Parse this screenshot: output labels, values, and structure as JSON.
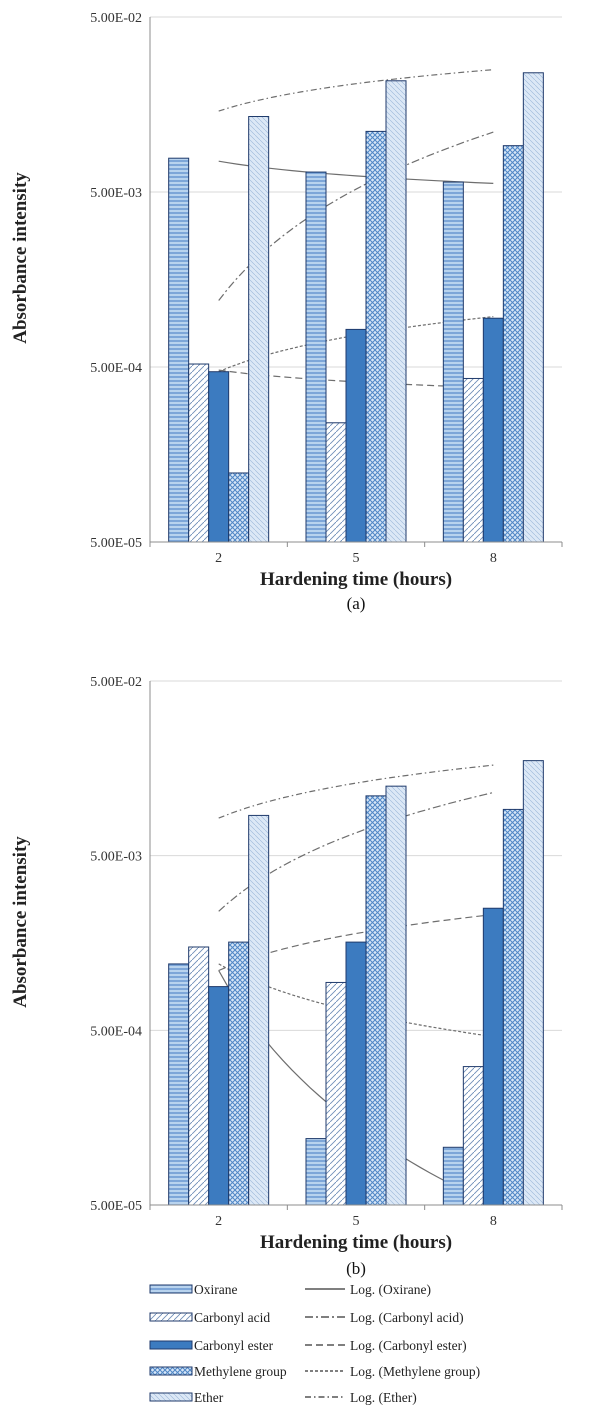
{
  "colors": {
    "oxirane": "#9dc3e6",
    "carbonyl_acid": "#ffffff",
    "carbonyl_ester": "#3c7bc0",
    "methylene_group": "#a9c8ea",
    "ether": "#dce8f6",
    "outline": "#1f3a6b",
    "trend": "#6e6e6e"
  },
  "chart_data": [
    {
      "type": "bar",
      "panel_label": "(a)",
      "xlabel": "Hardening time (hours)",
      "ylabel": "Absorbance intensity",
      "yscale": "log",
      "ylim": [
        5e-05,
        0.05
      ],
      "yticks": [
        "5.00E-05",
        "5.00E-04",
        "5.00E-03",
        "5.00E-02"
      ],
      "categories": [
        "2",
        "5",
        "8"
      ],
      "grid": true,
      "series": [
        {
          "name": "Oxirane",
          "values": [
            0.0078,
            0.0065,
            0.0057
          ]
        },
        {
          "name": "Carbonyl acid",
          "values": [
            0.00052,
            0.00024,
            0.00043
          ]
        },
        {
          "name": "Carbonyl ester",
          "values": [
            0.00047,
            0.00082,
            0.00095
          ]
        },
        {
          "name": "Methylene group",
          "values": [
            0.000124,
            0.0111,
            0.0092
          ]
        },
        {
          "name": "Ether",
          "values": [
            0.0135,
            0.0216,
            0.024
          ]
        }
      ],
      "trendlines": [
        {
          "name": "Log. (Oxirane)",
          "values": [
            0.0075,
            0.0063,
            0.0056
          ]
        },
        {
          "name": "Log. (Carbonyl acid)",
          "values": [
            0.0012,
            0.0075,
            0.011
          ]
        },
        {
          "name": "Log. (Carbonyl ester)",
          "values": [
            0.00048,
            0.00041,
            0.00038
          ]
        },
        {
          "name": "Log. (Methylene group)",
          "values": [
            0.00047,
            0.00082,
            0.00097
          ]
        },
        {
          "name": "Log. (Ether)",
          "values": [
            0.0145,
            0.021,
            0.025
          ]
        }
      ]
    },
    {
      "type": "bar",
      "panel_label": "(b)",
      "xlabel": "Hardening time (hours)",
      "ylabel": "Absorbance intensity",
      "yscale": "log",
      "ylim": [
        5e-05,
        0.05
      ],
      "yticks": [
        "5.00E-05",
        "5.00E-04",
        "5.00E-03",
        "5.00E-02"
      ],
      "categories": [
        "2",
        "5",
        "8"
      ],
      "grid": true,
      "series": [
        {
          "name": "Oxirane",
          "values": [
            0.0012,
            0.00012,
            0.000107
          ]
        },
        {
          "name": "Carbonyl acid",
          "values": [
            0.0015,
            0.00094,
            0.00031
          ]
        },
        {
          "name": "Carbonyl ester",
          "values": [
            0.00089,
            0.0016,
            0.0025
          ]
        },
        {
          "name": "Methylene group",
          "values": [
            0.0016,
            0.011,
            0.0092
          ]
        },
        {
          "name": "Ether",
          "values": [
            0.0085,
            0.0125,
            0.0175
          ]
        }
      ],
      "trendlines": [
        {
          "name": "Log. (Oxirane)",
          "values": [
            0.0011,
            0.00038,
            5e-05
          ]
        },
        {
          "name": "Log. (Carbonyl acid)",
          "values": [
            0.0024,
            0.008,
            0.0115
          ]
        },
        {
          "name": "Log. (Carbonyl ester)",
          "values": [
            0.0011,
            0.0019,
            0.0023
          ]
        },
        {
          "name": "Log. (Methylene group)",
          "values": [
            0.0012,
            0.00069,
            0.00046
          ]
        },
        {
          "name": "Log. (Ether)",
          "values": [
            0.0082,
            0.013,
            0.0165
          ]
        }
      ]
    }
  ],
  "legend": {
    "placement": "bottom",
    "bar_items": [
      "Oxirane",
      "Carbonyl acid",
      "Carbonyl ester",
      "Methylene group",
      "Ether"
    ],
    "trend_items": [
      "Log. (Oxirane)",
      "Log. (Carbonyl acid)",
      "Log. (Carbonyl ester)",
      "Log. (Methylene group)",
      "Log. (Ether)"
    ]
  }
}
